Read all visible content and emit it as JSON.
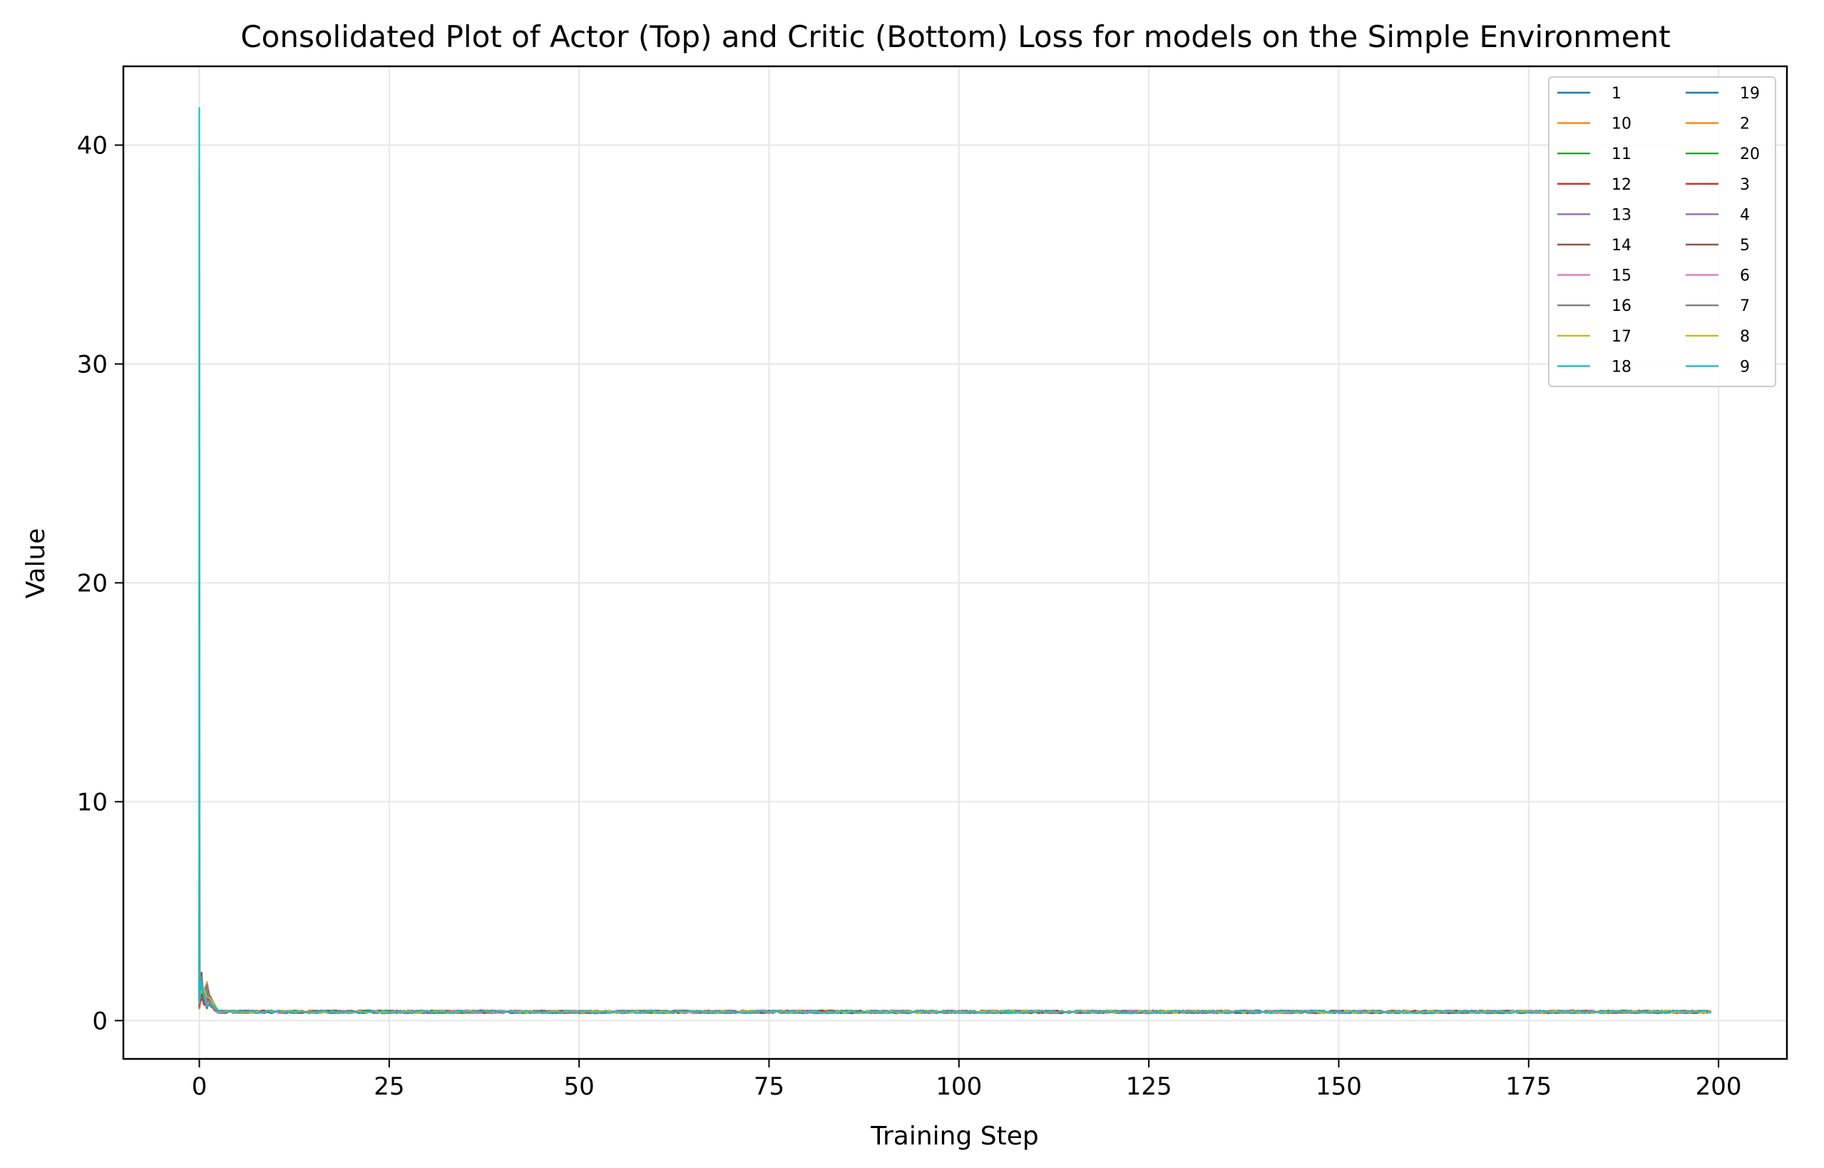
{
  "chart_data": {
    "type": "line",
    "title": "Consolidated Plot of Actor (Top) and Critic (Bottom) Loss for models on the Simple Environment",
    "xlabel": "Training Step",
    "ylabel": "Value",
    "xlim": [
      -10,
      209
    ],
    "ylim": [
      -1.75,
      43.6
    ],
    "xticks": [
      0,
      25,
      50,
      75,
      100,
      125,
      150,
      175,
      200
    ],
    "yticks": [
      0,
      10,
      20,
      30,
      40
    ],
    "grid": true,
    "legend_position": "top-right",
    "legend_columns": 2,
    "series": [
      {
        "name": "1",
        "color": "#1f77b4",
        "peak": 6.0
      },
      {
        "name": "10",
        "color": "#ff7f0e",
        "peak": 23.0
      },
      {
        "name": "11",
        "color": "#2ca02c",
        "peak": 5.0
      },
      {
        "name": "12",
        "color": "#d62728",
        "peak": 4.5
      },
      {
        "name": "13",
        "color": "#9467bd",
        "peak": 5.5
      },
      {
        "name": "14",
        "color": "#8c564b",
        "peak": 4.0
      },
      {
        "name": "15",
        "color": "#e377c2",
        "peak": 6.5
      },
      {
        "name": "16",
        "color": "#7f7f7f",
        "peak": 3.5
      },
      {
        "name": "17",
        "color": "#bcbd22",
        "peak": 7.0
      },
      {
        "name": "18",
        "color": "#17becf",
        "peak": 20.0
      },
      {
        "name": "19",
        "color": "#1f77b4",
        "peak": 8.0
      },
      {
        "name": "2",
        "color": "#ff7f0e",
        "peak": 38.8
      },
      {
        "name": "20",
        "color": "#2ca02c",
        "peak": 5.0
      },
      {
        "name": "3",
        "color": "#d62728",
        "peak": 4.0
      },
      {
        "name": "4",
        "color": "#9467bd",
        "peak": 6.0
      },
      {
        "name": "5",
        "color": "#8c564b",
        "peak": 5.0
      },
      {
        "name": "6",
        "color": "#e377c2",
        "peak": 4.5
      },
      {
        "name": "7",
        "color": "#7f7f7f",
        "peak": 3.0
      },
      {
        "name": "8",
        "color": "#bcbd22",
        "peak": 6.0
      },
      {
        "name": "9",
        "color": "#17becf",
        "peak": 41.7
      }
    ],
    "x_range_of_series": [
      0,
      199
    ],
    "steady_value_approx": 0.4
  }
}
